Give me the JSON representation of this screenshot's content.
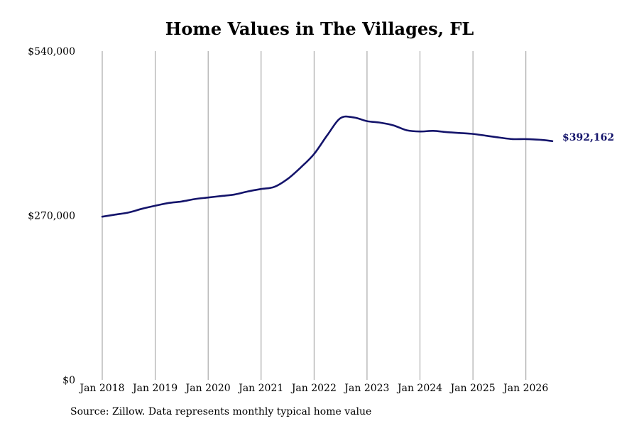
{
  "chart_data": {
    "type": "line",
    "title": "Home Values in The Villages, FL",
    "source": "Source: Zillow. Data represents monthly typical home value",
    "xlabel": "",
    "ylabel": "",
    "ylim": [
      0,
      540000
    ],
    "yticks": [
      {
        "value": 0,
        "label": "$0"
      },
      {
        "value": 270000,
        "label": "$270,000"
      },
      {
        "value": 540000,
        "label": "$540,000"
      }
    ],
    "xlim": [
      "2018-01",
      "2026-07"
    ],
    "xticks": [
      {
        "date": "2018-01",
        "label": "Jan 2018"
      },
      {
        "date": "2019-01",
        "label": "Jan 2019"
      },
      {
        "date": "2020-01",
        "label": "Jan 2020"
      },
      {
        "date": "2021-01",
        "label": "Jan 2021"
      },
      {
        "date": "2022-01",
        "label": "Jan 2022"
      },
      {
        "date": "2023-01",
        "label": "Jan 2023"
      },
      {
        "date": "2024-01",
        "label": "Jan 2024"
      },
      {
        "date": "2025-01",
        "label": "Jan 2025"
      },
      {
        "date": "2026-01",
        "label": "Jan 2026"
      }
    ],
    "grid": "vertical",
    "line_color": "#14146b",
    "end_label": "$392,162",
    "series": [
      {
        "points": [
          [
            "2018-01",
            268000
          ],
          [
            "2018-04",
            271500
          ],
          [
            "2018-07",
            275000
          ],
          [
            "2018-10",
            281000
          ],
          [
            "2019-01",
            286000
          ],
          [
            "2019-04",
            290500
          ],
          [
            "2019-07",
            293000
          ],
          [
            "2019-10",
            297000
          ],
          [
            "2020-01",
            299500
          ],
          [
            "2020-04",
            302000
          ],
          [
            "2020-07",
            304500
          ],
          [
            "2020-10",
            309500
          ],
          [
            "2021-01",
            313500
          ],
          [
            "2021-04",
            317000
          ],
          [
            "2021-07",
            330000
          ],
          [
            "2021-10",
            349000
          ],
          [
            "2022-01",
            371000
          ],
          [
            "2022-04",
            402000
          ],
          [
            "2022-07",
            430000
          ],
          [
            "2022-10",
            431000
          ],
          [
            "2023-01",
            425000
          ],
          [
            "2023-04",
            422500
          ],
          [
            "2023-07",
            418000
          ],
          [
            "2023-10",
            410000
          ],
          [
            "2024-01",
            408000
          ],
          [
            "2024-04",
            409000
          ],
          [
            "2024-07",
            407000
          ],
          [
            "2024-10",
            405500
          ],
          [
            "2025-01",
            404000
          ],
          [
            "2025-04",
            401000
          ],
          [
            "2025-07",
            398000
          ],
          [
            "2025-10",
            395500
          ],
          [
            "2026-01",
            395500
          ],
          [
            "2026-04",
            394500
          ],
          [
            "2026-07",
            392162
          ]
        ]
      }
    ]
  }
}
